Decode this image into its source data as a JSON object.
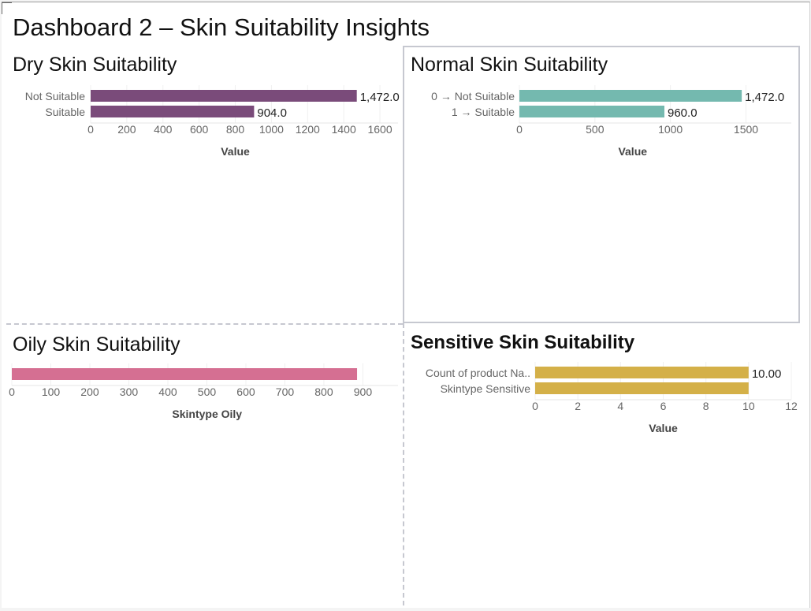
{
  "dashboard": {
    "title": "Dashboard 2 – Skin Suitability Insights"
  },
  "chart_data": [
    {
      "id": "dry",
      "type": "bar",
      "orientation": "horizontal",
      "title": "Dry Skin Suitability",
      "categories": [
        "Not Suitable",
        "Suitable"
      ],
      "values": [
        1472,
        904
      ],
      "data_labels": [
        "1,472.0",
        "904.0"
      ],
      "xlabel": "Value",
      "ticks": [
        0,
        200,
        400,
        600,
        800,
        1000,
        1200,
        1400,
        1600
      ],
      "xlim": [
        0,
        1700
      ],
      "color": "#7a4b7a"
    },
    {
      "id": "normal",
      "type": "bar",
      "orientation": "horizontal",
      "title": "Normal Skin Suitability",
      "categories": [
        "0 → Not Suitable",
        "1 → Suitable"
      ],
      "values": [
        1472,
        960
      ],
      "data_labels": [
        "1,472.0",
        "960.0"
      ],
      "xlabel": "Value",
      "ticks": [
        0,
        500,
        1000,
        1500
      ],
      "xlim": [
        0,
        1800
      ],
      "color": "#74b9af"
    },
    {
      "id": "oily",
      "type": "bar",
      "orientation": "horizontal",
      "title": "Oily Skin Suitability",
      "categories": [
        ""
      ],
      "values": [
        885
      ],
      "data_labels": [
        ""
      ],
      "xlabel": "Skintype Oily",
      "ticks": [
        0,
        100,
        200,
        300,
        400,
        500,
        600,
        700,
        800,
        900
      ],
      "xlim": [
        0,
        990
      ],
      "color": "#d56f92"
    },
    {
      "id": "sensitive",
      "type": "bar",
      "orientation": "horizontal",
      "title": "Sensitive Skin Suitability",
      "categories": [
        "Count of product Na..",
        "Skintype Sensitive"
      ],
      "values": [
        10,
        10
      ],
      "data_labels": [
        "10.00",
        ""
      ],
      "xlabel": "Value",
      "ticks": [
        0,
        2,
        4,
        6,
        8,
        10,
        12
      ],
      "xlim": [
        0,
        12
      ],
      "color": "#d4b048"
    }
  ]
}
